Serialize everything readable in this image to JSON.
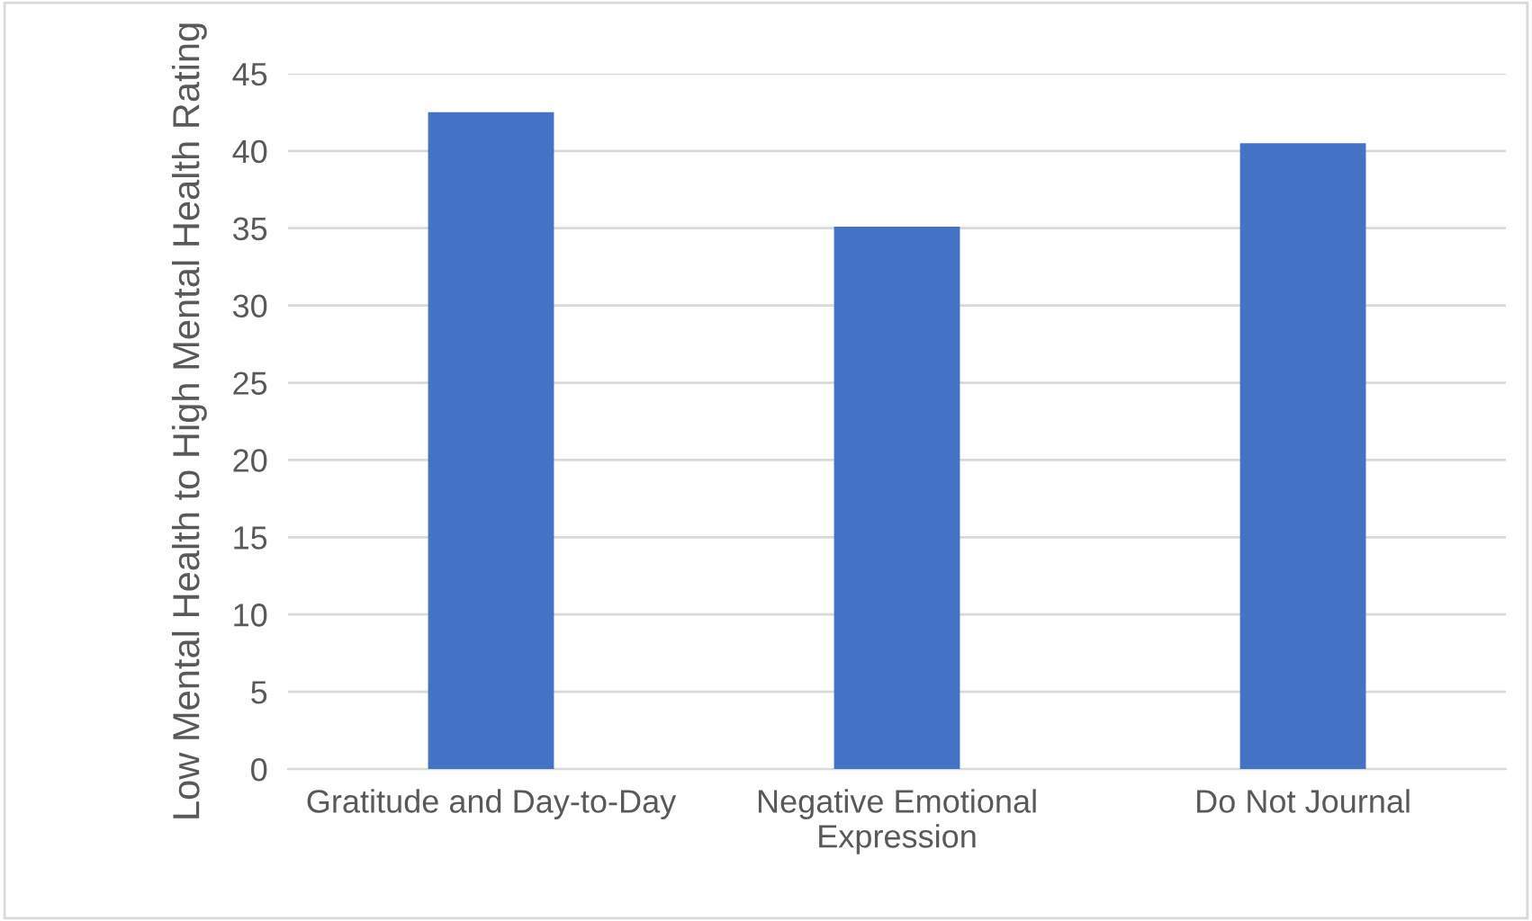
{
  "chart_data": {
    "type": "bar",
    "ylabel": "Low Mental Health to High Mental Health Rating",
    "categories": [
      "Gratitude and Day-to-Day",
      "Negative Emotional Expression",
      "Do Not Journal"
    ],
    "values": [
      42.5,
      35.1,
      40.5
    ],
    "color": "#4472c4",
    "ylim": [
      0,
      45
    ],
    "yticks": [
      0,
      5,
      10,
      15,
      20,
      25,
      30,
      35,
      40,
      45
    ],
    "grid": "y"
  }
}
